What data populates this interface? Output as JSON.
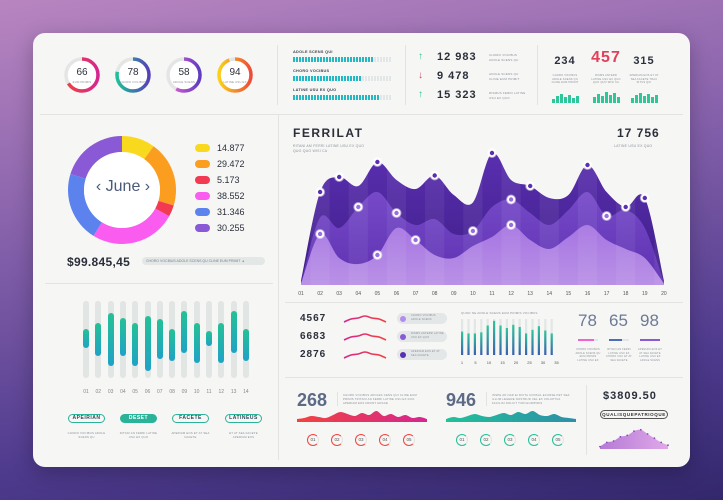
{
  "gauges": [
    {
      "value": "66",
      "label": "EUM PRIMIS",
      "progress": 0.66,
      "colors": [
        "#f0433f",
        "#d6268f"
      ]
    },
    {
      "value": "78",
      "label": "CHORO VOCIBUS",
      "progress": 0.78,
      "colors": [
        "#21c09a",
        "#5441b8"
      ]
    },
    {
      "value": "58",
      "label": "ADOLE SCENS",
      "progress": 0.58,
      "colors": [
        "#f062d8",
        "#5d3cc0"
      ]
    },
    {
      "value": "94",
      "label": "LATINE USU EX",
      "progress": 0.94,
      "colors": [
        "#fbd119",
        "#ef4a37"
      ]
    }
  ],
  "progress_bars": [
    {
      "label": "ADOLE SCENS QUI",
      "progress": 0.82
    },
    {
      "label": "CHORO VOCIBUS",
      "progress": 0.7
    },
    {
      "label": "LATINE USU EX QUO",
      "progress": 0.88
    }
  ],
  "stats": [
    {
      "direction": "up",
      "value": "12 983",
      "text": "CHORO VOCIBUS ADOLE SCENS QU",
      "color": "#2fc69a"
    },
    {
      "direction": "down",
      "value": "9 478",
      "text": "ADOLE SCENS QU CLINE EUM PRIMIT",
      "color": "#e0405a"
    },
    {
      "direction": "up",
      "value": "15 323",
      "text": "RISMUS FERRI LATINE USU EX QUO",
      "color": "#2fc69a"
    }
  ],
  "counters": [
    {
      "value": "234",
      "text": "CHORO VOCIBUS ADOLE SCENS QU CLINE EUM PRIMIT",
      "color": "#2b2f3a",
      "bars": [
        4,
        7,
        9,
        6,
        8,
        5,
        7
      ]
    },
    {
      "value": "457",
      "text": "RISMS ANTERR LATINE USU EX QUO QUO QUO WISI CA",
      "color": "#e0405a",
      "bars": [
        6,
        9,
        7,
        11,
        8,
        10,
        6
      ]
    },
    {
      "value": "315",
      "text": "APERIAM EOS ET AT SEA FACETE TRAC SITUS QUI",
      "color": "#2b2f3a",
      "bars": [
        5,
        8,
        10,
        7,
        9,
        6,
        8
      ]
    }
  ],
  "donut": {
    "month": "June",
    "prev_icon": "chevron-left-icon",
    "next_icon": "chevron-right-icon",
    "segments": [
      {
        "value": "14.877",
        "amount": 14.877,
        "color": "#f9d91e"
      },
      {
        "value": "29.472",
        "amount": 29.472,
        "color": "#fb9d1f"
      },
      {
        "value": "5.173",
        "amount": 5.173,
        "color": "#f23b53"
      },
      {
        "value": "38.552",
        "amount": 38.552,
        "color": "#fb5cf0"
      },
      {
        "value": "31.346",
        "amount": 31.346,
        "color": "#5c82ee"
      },
      {
        "value": "30.255",
        "amount": 30.255,
        "color": "#8a5ad6"
      }
    ],
    "total": "$99.845,45",
    "note": "CHORO VOCIBUS ADOLE SCENS QU CLINE EUM PRIMIT"
  },
  "area_chart": {
    "title": "FERRILAT",
    "subtitle": "RITANI AM FERRI LATINE USU EX QUO QUO QUO WISI CA",
    "total": "17 756",
    "total_label": "LATINE USU EX QUO",
    "x_labels": [
      "01",
      "02",
      "03",
      "04",
      "05",
      "06",
      "07",
      "08",
      "09",
      "10",
      "11",
      "12",
      "13",
      "14",
      "15",
      "16",
      "17",
      "18",
      "19",
      "20"
    ],
    "series": [
      {
        "color": "#5a2fb0",
        "values": [
          3,
          62,
          72,
          66,
          82,
          70,
          64,
          73,
          60,
          55,
          88,
          70,
          66,
          58,
          60,
          80,
          62,
          52,
          58,
          3
        ]
      },
      {
        "color": "#7d4fd0",
        "values": [
          2,
          45,
          38,
          52,
          62,
          48,
          40,
          44,
          34,
          36,
          52,
          57,
          48,
          40,
          50,
          62,
          46,
          50,
          38,
          2
        ]
      },
      {
        "color": "#b07ee8",
        "values": [
          1,
          34,
          18,
          14,
          20,
          38,
          30,
          20,
          18,
          26,
          32,
          40,
          30,
          24,
          32,
          40,
          30,
          24,
          18,
          1
        ]
      }
    ],
    "markers": [
      [
        0,
        1
      ],
      [
        0,
        2
      ],
      [
        0,
        4
      ],
      [
        0,
        7
      ],
      [
        0,
        10
      ],
      [
        0,
        12
      ],
      [
        0,
        15
      ],
      [
        0,
        17
      ],
      [
        0,
        18
      ],
      [
        1,
        5
      ],
      [
        1,
        3
      ],
      [
        1,
        9
      ],
      [
        1,
        11
      ],
      [
        1,
        16
      ],
      [
        2,
        1
      ],
      [
        2,
        4
      ],
      [
        2,
        6
      ],
      [
        2,
        11
      ]
    ]
  },
  "column_bars": {
    "labels": [
      "01",
      "02",
      "03",
      "04",
      "05",
      "06",
      "07",
      "08",
      "09",
      "10",
      "11",
      "12",
      "13",
      "14"
    ],
    "ranges": [
      [
        0.37,
        0.61
      ],
      [
        0.28,
        0.72
      ],
      [
        0.16,
        0.84
      ],
      [
        0.22,
        0.71
      ],
      [
        0.28,
        0.85
      ],
      [
        0.19,
        0.91
      ],
      [
        0.23,
        0.75
      ],
      [
        0.37,
        0.78
      ],
      [
        0.13,
        0.68
      ],
      [
        0.28,
        0.8
      ],
      [
        0.39,
        0.59
      ],
      [
        0.28,
        0.8
      ],
      [
        0.13,
        0.68
      ],
      [
        0.37,
        0.78
      ]
    ]
  },
  "filter_buttons": [
    {
      "label": "APEIRIAN",
      "text": "CHORO VOCIBUS ADOLE SCENS QU",
      "active": false
    },
    {
      "label": "DESET",
      "text": "RITANI AN FERRI LATINE USU EX QUO",
      "active": true
    },
    {
      "label": "FACETE",
      "text": "APERIAM EOS ET AT SEA FACETE",
      "active": false
    },
    {
      "label": "LATINEUS",
      "text": "ET AT SEA FACETE APERIAM EOS",
      "active": false
    }
  ],
  "trend_rows": [
    {
      "value": "4567",
      "pill": "CHORO VOCIBUS ADOLE SCENS",
      "dot": "#b38cf0"
    },
    {
      "value": "6683",
      "pill": "RISMS ANTERR LATINE USU EX QUO",
      "dot": "#8a5ad6"
    },
    {
      "value": "2876",
      "pill": "APERIAM EOS ET AT SEA FACETE",
      "dot": "#5a2fb0"
    }
  ],
  "mini_bar_chart": {
    "title": "QUOD NE ADOLE SCENS EUM PRIMIS VOCIBUS",
    "x_labels": [
      "1",
      "5",
      "10",
      "15",
      "20",
      "25",
      "30",
      "35"
    ],
    "values": [
      0.65,
      0.6,
      0.6,
      0.63,
      0.82,
      0.95,
      0.82,
      0.75,
      0.84,
      0.78,
      0.6,
      0.7,
      0.8,
      0.68,
      0.6
    ]
  },
  "percent_stats": [
    {
      "value": "78",
      "progress": 0.78,
      "color": "#f062d8",
      "text": "CHORO VOCIBUS ADOLE SCENS QU EUM PRIMIS LATINE USU EX"
    },
    {
      "value": "65",
      "progress": 0.65,
      "color": "#4a6fb8",
      "text": "RITANI AN FERRI LATINE USU EX CHORO VOC ET AT SEA FACETE"
    },
    {
      "value": "98",
      "progress": 0.98,
      "color": "#8a5ad6",
      "text": "APERIAM EOS ET AT SEA FACETE LATINE USU EX ADOLE SCENS"
    }
  ],
  "wave_panels": [
    {
      "value": "268",
      "text": "CHORO VOCIBUS ADOLES CENS QUI CLINE EUM PRIMIS TRITANI AN FERRI LATINE USU EX DUO APERIAM EOS DRUNT GRACE",
      "colors": [
        "#f0433f",
        "#d6268f"
      ],
      "wave": [
        2,
        3,
        5,
        4,
        3,
        6,
        9,
        7,
        5,
        8,
        6,
        10,
        5,
        7,
        4,
        6,
        3,
        4,
        2
      ],
      "steps": [
        "01",
        "02",
        "03",
        "04",
        "05"
      ]
    },
    {
      "value": "946",
      "text": "INSPE AN NAD EI DICTA CONSUL ECURSE PET SEA ILLUM LEGERE NOSTRUD VEL EX VOLUPTUA FACILISI NOLUIT TION EURIPIDIS",
      "colors": [
        "#21c09a",
        "#2d8fa8"
      ],
      "wave": [
        2,
        4,
        3,
        5,
        7,
        5,
        4,
        6,
        8,
        6,
        9,
        7,
        10,
        6,
        5,
        7,
        4,
        3,
        2
      ],
      "steps": [
        "01",
        "02",
        "03",
        "04",
        "05"
      ]
    }
  ],
  "price": {
    "value": "$3809.50",
    "badge": "QUALISQUEPATRIOQUE",
    "trend": [
      1,
      4,
      5,
      8,
      9,
      12,
      13,
      10,
      7,
      4,
      2
    ]
  }
}
